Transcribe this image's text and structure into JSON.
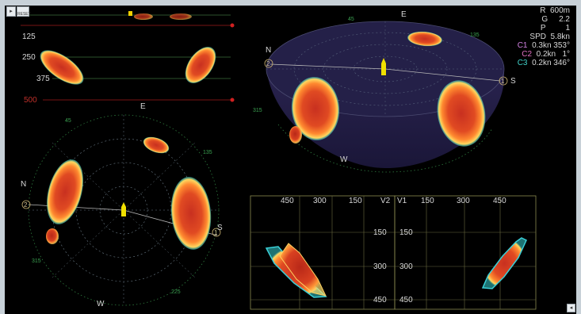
{
  "toolbar": {
    "arrow_glyph": "▸",
    "logo_text": "RESET"
  },
  "depth_panel": {
    "labels": [
      {
        "text": "125",
        "color": "#d8d8d8"
      },
      {
        "text": "250",
        "color": "#d8d8d8"
      },
      {
        "text": "375",
        "color": "#d8d8d8"
      },
      {
        "text": "500",
        "color": "#c0302a"
      }
    ]
  },
  "plan_view": {
    "compass": {
      "north": "N",
      "east": "E",
      "south": "S",
      "west": "W"
    },
    "bearings": {
      "b45": "45",
      "b135": "135",
      "b225": "225",
      "b315": "315"
    },
    "markers": {
      "m1": "1",
      "m2": "2"
    }
  },
  "perspective_view": {
    "compass": {
      "north": "N",
      "east": "E",
      "south": "S",
      "west": "W"
    },
    "bearings": {
      "b45": "45",
      "b135": "135",
      "b315": "315"
    },
    "markers": {
      "m1": "1",
      "m2": "2"
    }
  },
  "params": {
    "range": {
      "label": "R",
      "value": "600m"
    },
    "gain": {
      "label": "G",
      "value": "2.2"
    },
    "pulse": {
      "label": "P",
      "value": "1"
    },
    "speed": {
      "label": "SPD",
      "value": "5.8kn"
    },
    "currents": [
      {
        "label": "C1",
        "value": "0.3kn 353°",
        "color": "#d080e0"
      },
      {
        "label": "C2",
        "value": "0.2kn   1°",
        "color": "#e070c0"
      },
      {
        "label": "C3",
        "value": "0.2kn 346°",
        "color": "#40d0c8"
      }
    ]
  },
  "vertical_views": {
    "v2": {
      "title": "V2",
      "x_ticks": [
        "450",
        "300",
        "150"
      ],
      "y_ticks": [
        "150",
        "300",
        "450"
      ]
    },
    "v1": {
      "title": "V1",
      "x_ticks": [
        "150",
        "300",
        "450"
      ],
      "y_ticks": [
        "150",
        "300",
        "450"
      ]
    }
  },
  "corner_glyph": "◂"
}
